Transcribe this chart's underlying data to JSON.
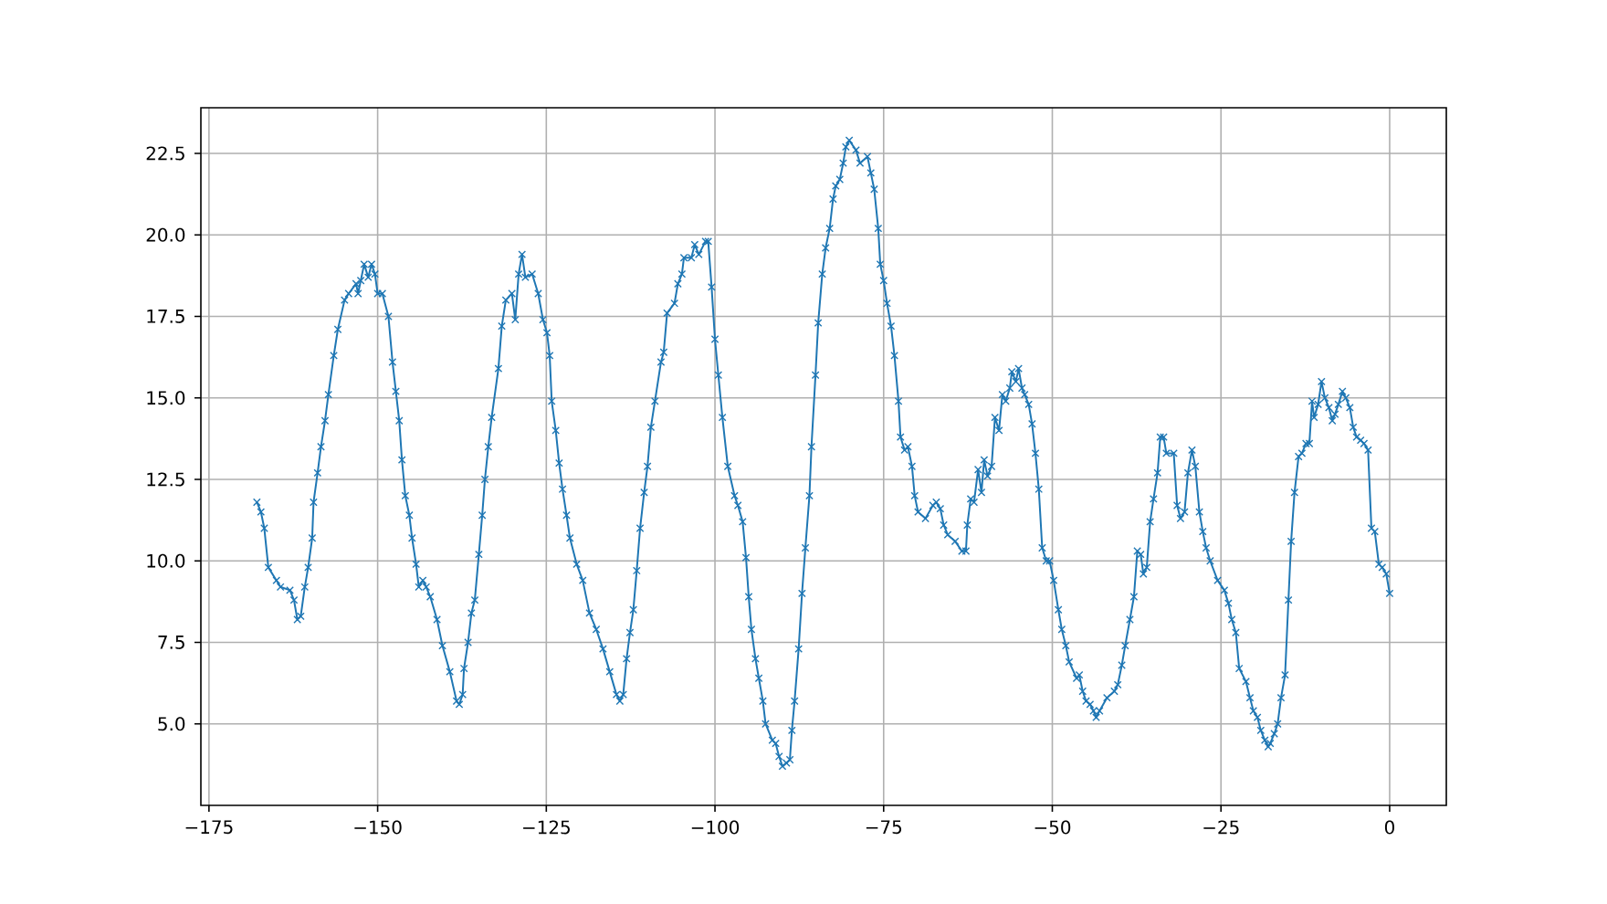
{
  "chart_data": {
    "type": "line",
    "color": "#1f77b4",
    "marker": "cross",
    "line_style": "solid",
    "grid": true,
    "xlim": [
      -176.2,
      8.4
    ],
    "ylim": [
      2.5,
      23.9
    ],
    "xticks": [
      {
        "value": -175,
        "label": "−175"
      },
      {
        "value": -150,
        "label": "−150"
      },
      {
        "value": -125,
        "label": "−125"
      },
      {
        "value": -100,
        "label": "−100"
      },
      {
        "value": -75,
        "label": "−75"
      },
      {
        "value": -50,
        "label": "−50"
      },
      {
        "value": -25,
        "label": "−25"
      },
      {
        "value": 0,
        "label": "0"
      }
    ],
    "yticks": [
      {
        "value": 5,
        "label": "5.0"
      },
      {
        "value": 7.5,
        "label": "7.5"
      },
      {
        "value": 10,
        "label": "10.0"
      },
      {
        "value": 12.5,
        "label": "12.5"
      },
      {
        "value": 15,
        "label": "15.0"
      },
      {
        "value": 17.5,
        "label": "17.5"
      },
      {
        "value": 20,
        "label": "20.0"
      },
      {
        "value": 22.5,
        "label": "22.5"
      }
    ],
    "x": [
      -167.9,
      -167.3,
      -166.8,
      -166.2,
      -165.0,
      -164.4,
      -163.0,
      -162.4,
      -161.9,
      -161.4,
      -160.8,
      -160.3,
      -159.7,
      -159.5,
      -158.9,
      -158.4,
      -157.8,
      -157.3,
      -156.5,
      -155.9,
      -154.9,
      -154.3,
      -153.2,
      -152.9,
      -152.5,
      -152.0,
      -151.4,
      -150.9,
      -150.4,
      -150.0,
      -149.3,
      -148.4,
      -147.8,
      -147.3,
      -146.8,
      -146.4,
      -145.9,
      -145.3,
      -144.9,
      -144.3,
      -143.9,
      -143.3,
      -142.8,
      -142.2,
      -141.2,
      -140.4,
      -139.3,
      -138.3,
      -137.9,
      -137.4,
      -137.2,
      -136.6,
      -136.1,
      -135.6,
      -135.0,
      -134.5,
      -134.1,
      -133.6,
      -133.1,
      -132.1,
      -131.6,
      -131.0,
      -130.1,
      -129.6,
      -129.1,
      -128.6,
      -128.1,
      -127.1,
      -126.2,
      -125.5,
      -124.9,
      -124.5,
      -124.2,
      -123.6,
      -123.1,
      -122.6,
      -122.0,
      -121.5,
      -120.5,
      -119.6,
      -118.6,
      -117.6,
      -116.6,
      -115.6,
      -114.6,
      -114.1,
      -113.6,
      -113.1,
      -112.6,
      -112.1,
      -111.6,
      -111.1,
      -110.5,
      -110.0,
      -109.5,
      -108.9,
      -108.0,
      -107.6,
      -107.1,
      -106.0,
      -105.5,
      -104.9,
      -104.6,
      -103.5,
      -103.0,
      -102.4,
      -101.4,
      -101.0,
      -100.5,
      -100.0,
      -99.5,
      -98.9,
      -98.1,
      -97.1,
      -96.6,
      -95.9,
      -95.4,
      -95.0,
      -94.6,
      -94.0,
      -93.5,
      -92.9,
      -92.5,
      -91.5,
      -91.0,
      -90.5,
      -90.0,
      -89.4,
      -88.9,
      -88.6,
      -88.2,
      -87.6,
      -87.1,
      -86.6,
      -86.0,
      -85.7,
      -85.1,
      -84.7,
      -84.1,
      -83.6,
      -83.0,
      -82.5,
      -82.1,
      -81.5,
      -81.0,
      -80.6,
      -80.1,
      -79.1,
      -78.5,
      -77.4,
      -76.9,
      -76.4,
      -75.8,
      -75.5,
      -75.0,
      -74.5,
      -73.9,
      -73.4,
      -72.8,
      -72.5,
      -71.9,
      -71.4,
      -70.8,
      -70.4,
      -69.9,
      -68.8,
      -67.7,
      -67.2,
      -66.6,
      -66.1,
      -65.5,
      -64.4,
      -63.4,
      -62.8,
      -62.6,
      -62.1,
      -61.6,
      -61.0,
      -60.5,
      -60.1,
      -59.6,
      -59.0,
      -58.5,
      -57.9,
      -57.4,
      -56.9,
      -56.3,
      -56.0,
      -55.4,
      -55.0,
      -54.5,
      -54.1,
      -53.5,
      -53.0,
      -52.5,
      -52.0,
      -51.5,
      -50.9,
      -50.4,
      -49.8,
      -49.1,
      -48.6,
      -48.0,
      -47.5,
      -46.4,
      -46.0,
      -45.5,
      -45.0,
      -44.4,
      -43.9,
      -43.5,
      -43.0,
      -41.9,
      -40.8,
      -40.3,
      -39.7,
      -39.2,
      -38.5,
      -37.9,
      -37.4,
      -36.9,
      -36.5,
      -36.0,
      -35.5,
      -35.0,
      -34.4,
      -34.0,
      -33.5,
      -33.1,
      -32.0,
      -31.5,
      -31.0,
      -30.4,
      -29.9,
      -29.3,
      -28.8,
      -28.2,
      -27.7,
      -27.2,
      -26.6,
      -25.5,
      -24.5,
      -23.9,
      -23.4,
      -22.8,
      -22.3,
      -21.3,
      -20.7,
      -20.2,
      -19.6,
      -19.1,
      -18.5,
      -18.0,
      -17.7,
      -17.1,
      -16.6,
      -16.1,
      -15.5,
      -15.0,
      -14.6,
      -14.1,
      -13.5,
      -13.0,
      -12.4,
      -11.9,
      -11.5,
      -11.2,
      -10.6,
      -10.1,
      -9.6,
      -9.0,
      -8.5,
      -8.1,
      -7.6,
      -7.0,
      -6.5,
      -5.9,
      -5.4,
      -4.9,
      -4.3,
      -3.8,
      -3.2,
      -2.7,
      -2.2,
      -1.6,
      -1.1,
      -0.5,
      0.0
    ],
    "values": [
      11.8,
      11.5,
      11.0,
      9.8,
      9.4,
      9.2,
      9.1,
      8.8,
      8.2,
      8.3,
      9.2,
      9.8,
      10.7,
      11.8,
      12.7,
      13.5,
      14.3,
      15.1,
      16.3,
      17.1,
      18.0,
      18.2,
      18.5,
      18.2,
      18.6,
      19.1,
      18.7,
      19.1,
      18.8,
      18.2,
      18.2,
      17.5,
      16.1,
      15.2,
      14.3,
      13.1,
      12.0,
      11.4,
      10.7,
      9.9,
      9.2,
      9.4,
      9.2,
      8.9,
      8.2,
      7.4,
      6.6,
      5.7,
      5.6,
      5.9,
      6.7,
      7.5,
      8.4,
      8.8,
      10.2,
      11.4,
      12.5,
      13.5,
      14.4,
      15.9,
      17.2,
      18.0,
      18.2,
      17.4,
      18.8,
      19.4,
      18.7,
      18.8,
      18.2,
      17.4,
      17.0,
      16.3,
      14.9,
      14.0,
      13.0,
      12.2,
      11.4,
      10.7,
      9.9,
      9.4,
      8.4,
      7.9,
      7.3,
      6.6,
      5.9,
      5.7,
      5.9,
      7.0,
      7.8,
      8.5,
      9.7,
      11.0,
      12.1,
      12.9,
      14.1,
      14.9,
      16.1,
      16.4,
      17.6,
      17.9,
      18.5,
      18.8,
      19.3,
      19.3,
      19.7,
      19.4,
      19.8,
      19.8,
      18.4,
      16.8,
      15.7,
      14.4,
      12.9,
      12.0,
      11.7,
      11.2,
      10.1,
      8.9,
      7.9,
      7.0,
      6.4,
      5.7,
      5.0,
      4.5,
      4.4,
      4.0,
      3.7,
      3.8,
      3.9,
      4.8,
      5.7,
      7.3,
      9.0,
      10.4,
      12.0,
      13.5,
      15.7,
      17.3,
      18.8,
      19.6,
      20.2,
      21.1,
      21.5,
      21.7,
      22.2,
      22.7,
      22.9,
      22.6,
      22.2,
      22.4,
      21.9,
      21.4,
      20.2,
      19.1,
      18.6,
      17.9,
      17.2,
      16.3,
      14.9,
      13.8,
      13.4,
      13.5,
      12.9,
      12.0,
      11.5,
      11.3,
      11.7,
      11.8,
      11.6,
      11.1,
      10.8,
      10.6,
      10.3,
      10.3,
      11.1,
      11.9,
      11.8,
      12.8,
      12.1,
      13.1,
      12.6,
      12.9,
      14.4,
      14.0,
      15.1,
      14.9,
      15.3,
      15.8,
      15.5,
      15.9,
      15.3,
      15.1,
      14.8,
      14.2,
      13.3,
      12.2,
      10.4,
      10.0,
      10.0,
      9.4,
      8.5,
      7.9,
      7.4,
      6.9,
      6.4,
      6.5,
      6.0,
      5.7,
      5.6,
      5.4,
      5.2,
      5.4,
      5.8,
      6.0,
      6.2,
      6.8,
      7.4,
      8.2,
      8.9,
      10.3,
      10.2,
      9.6,
      9.8,
      11.2,
      11.9,
      12.7,
      13.8,
      13.8,
      13.3,
      13.3,
      11.7,
      11.3,
      11.5,
      12.7,
      13.4,
      12.9,
      11.5,
      10.9,
      10.4,
      10.0,
      9.4,
      9.1,
      8.7,
      8.2,
      7.8,
      6.7,
      6.3,
      5.8,
      5.4,
      5.2,
      4.8,
      4.5,
      4.3,
      4.4,
      4.7,
      5.0,
      5.8,
      6.5,
      8.8,
      10.6,
      12.1,
      13.2,
      13.3,
      13.6,
      13.6,
      14.9,
      14.4,
      14.8,
      15.5,
      15.0,
      14.7,
      14.3,
      14.5,
      14.8,
      15.2,
      15.0,
      14.7,
      14.1,
      13.8,
      13.7,
      13.6,
      13.4,
      11.0,
      10.9,
      9.9,
      9.8,
      9.6,
      9.0
    ]
  }
}
